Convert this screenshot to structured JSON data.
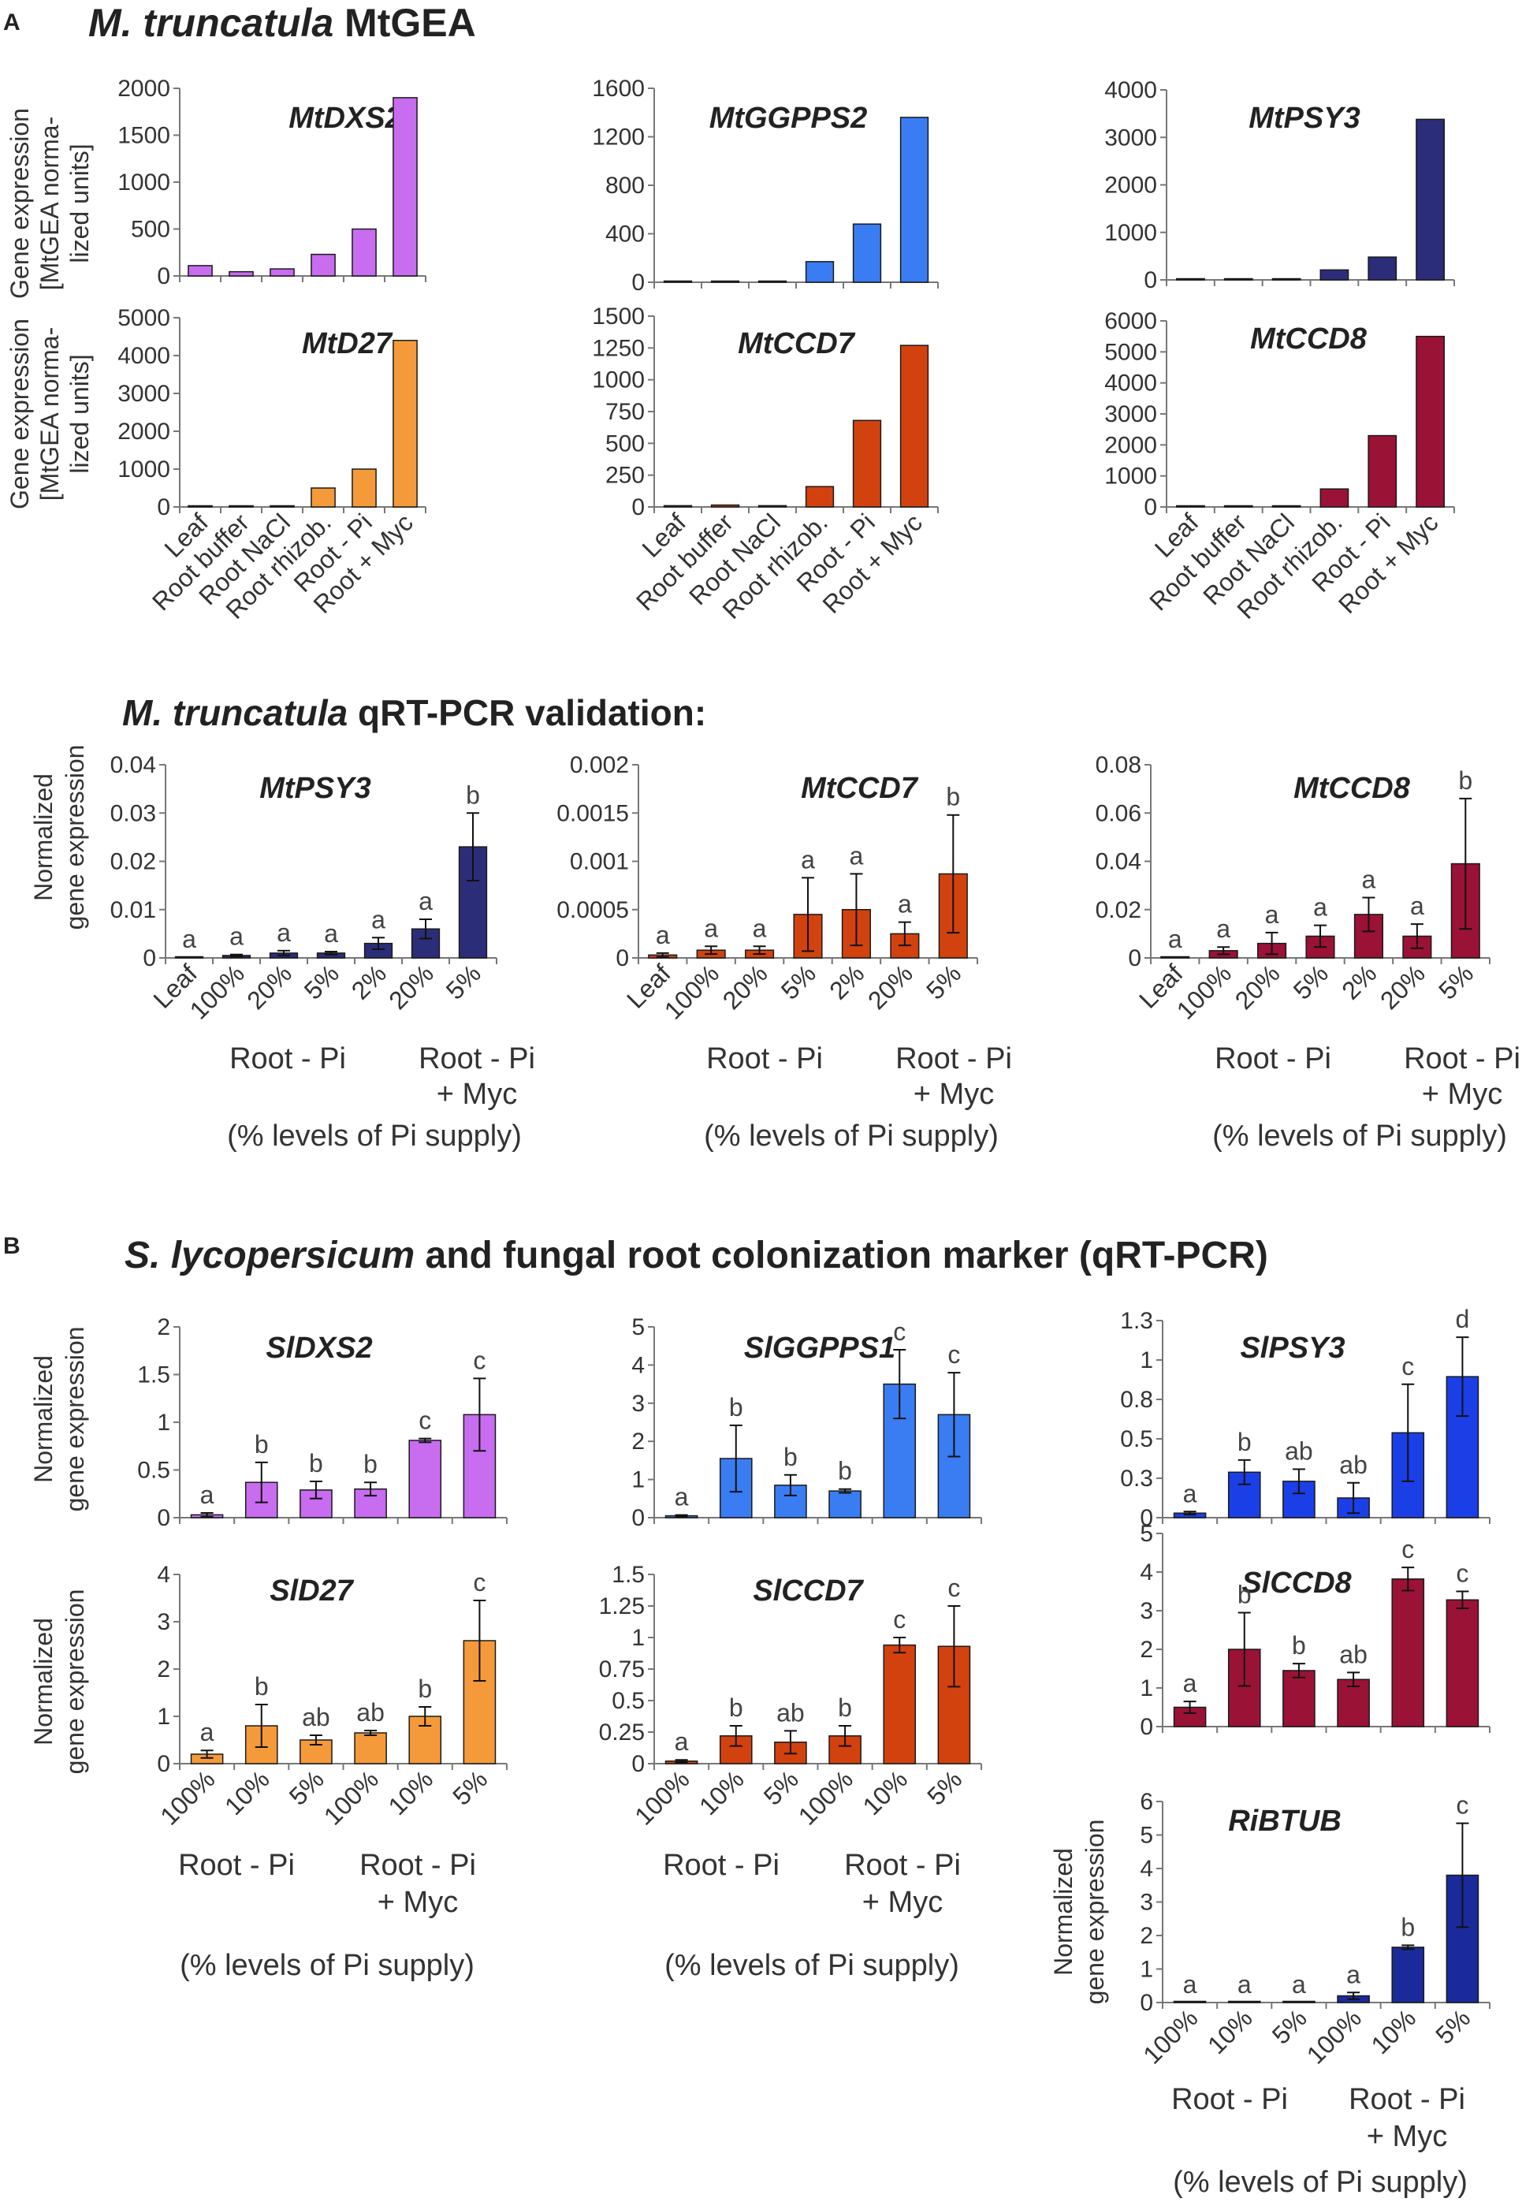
{
  "figure": {
    "panel_a_label": "A",
    "panel_a_title": "MtGEA",
    "panel_a_title_italic": "M. truncatula",
    "qpcr_title_italic": "M. truncatula",
    "qpcr_title": "qRT-PCR validation:",
    "panel_b_label": "B",
    "panel_b_title_italic": "S. lycopersicum",
    "panel_b_title": "and fungal root colonization marker (qRT-PCR)",
    "ylabel_gea": [
      "Gene expression",
      "[MtGEA norma-",
      "lized units]"
    ],
    "ylabel_norm": [
      "Normalized",
      "gene expression"
    ],
    "group_root_pi": "Root  - Pi",
    "group_root_pi_myc_1": "Root  - Pi",
    "group_root_pi_myc_2": "+ Myc",
    "pi_supply_note": "(% levels of Pi supply)"
  },
  "colors": {
    "violet": "#c86cf0",
    "blue": "#3a7cf2",
    "navy": "#2c2d78",
    "orange": "#f59a3a",
    "redorange": "#d2420e",
    "crimson": "#9a1236",
    "brightblue": "#1b3fe6",
    "darkblue": "#1a2a9a"
  },
  "chart_data": [
    {
      "id": "MtDXS2",
      "type": "bar",
      "title": "MtDXS2",
      "color": "violet",
      "ylim": [
        0,
        2000
      ],
      "yticks": [
        "0",
        "500",
        "1000",
        "1500",
        "2000"
      ],
      "categories": [
        "Leaf",
        "Root buffer",
        "Root NaCl",
        "Root rhizob.",
        "Root - Pi",
        "Root + Myc"
      ],
      "values": [
        110,
        45,
        75,
        230,
        500,
        1900
      ]
    },
    {
      "id": "MtGGPPS2",
      "type": "bar",
      "title": "MtGGPPS2",
      "color": "blue",
      "ylim": [
        0,
        1600
      ],
      "yticks": [
        "0",
        "400",
        "800",
        "1200",
        "1600"
      ],
      "categories": [
        "Leaf",
        "Root buffer",
        "Root NaCl",
        "Root rhizob.",
        "Root - Pi",
        "Root + Myc"
      ],
      "values": [
        10,
        5,
        5,
        170,
        480,
        1360
      ]
    },
    {
      "id": "MtPSY3",
      "type": "bar",
      "title": "MtPSY3",
      "color": "navy",
      "ylim": [
        0,
        4000
      ],
      "yticks": [
        "0",
        "1000",
        "2000",
        "3000",
        "4000"
      ],
      "categories": [
        "Leaf",
        "Root buffer",
        "Root NaCl",
        "Root rhizob.",
        "Root - Pi",
        "Root + Myc"
      ],
      "values": [
        20,
        15,
        10,
        210,
        480,
        3380
      ]
    },
    {
      "id": "MtD27",
      "type": "bar",
      "title": "MtD27",
      "color": "orange",
      "ylim": [
        0,
        5000
      ],
      "yticks": [
        "0",
        "1000",
        "2000",
        "3000",
        "4000",
        "5000"
      ],
      "categories": [
        "Leaf",
        "Root buffer",
        "Root NaCl",
        "Root rhizob.",
        "Root - Pi",
        "Root + Myc"
      ],
      "values": [
        20,
        30,
        30,
        500,
        1000,
        4400
      ]
    },
    {
      "id": "MtCCD7",
      "type": "bar",
      "title": "MtCCD7",
      "color": "redorange",
      "ylim": [
        0,
        1500
      ],
      "yticks": [
        "0",
        "250",
        "500",
        "750",
        "1000",
        "1250",
        "1500"
      ],
      "categories": [
        "Leaf",
        "Root buffer",
        "Root NaCl",
        "Root rhizob.",
        "Root - Pi",
        "Root + Myc"
      ],
      "values": [
        10,
        15,
        10,
        160,
        680,
        1270
      ]
    },
    {
      "id": "MtCCD8",
      "type": "bar",
      "title": "MtCCD8",
      "color": "crimson",
      "ylim": [
        0,
        6000
      ],
      "yticks": [
        "0",
        "1000",
        "2000",
        "3000",
        "4000",
        "5000",
        "6000"
      ],
      "categories": [
        "Leaf",
        "Root buffer",
        "Root NaCl",
        "Root rhizob.",
        "Root - Pi",
        "Root + Myc"
      ],
      "values": [
        20,
        20,
        20,
        580,
        2300,
        5500
      ]
    },
    {
      "id": "qMtPSY3",
      "type": "bar",
      "title": "MtPSY3",
      "color": "navy",
      "ylim": [
        0,
        0.04
      ],
      "yticks": [
        "0",
        "0.01",
        "0.02",
        "0.03",
        "0.04"
      ],
      "categories": [
        "Leaf",
        "100%",
        "20%",
        "5%",
        "2%",
        "20%",
        "5%"
      ],
      "values": [
        0.0002,
        0.0005,
        0.001,
        0.001,
        0.003,
        0.006,
        0.023
      ],
      "errors": [
        0,
        0.0002,
        0.0005,
        0.0003,
        0.0012,
        0.002,
        0.007
      ],
      "letters": [
        "a",
        "a",
        "a",
        "a",
        "a",
        "a",
        "b"
      ]
    },
    {
      "id": "qMtCCD7",
      "type": "bar",
      "title": "MtCCD7",
      "color": "redorange",
      "ylim": [
        0,
        0.002
      ],
      "yticks": [
        "0",
        "0.0005",
        "0.001",
        "0.0015",
        "0.002"
      ],
      "categories": [
        "Leaf",
        "100%",
        "20%",
        "5%",
        "2%",
        "20%",
        "5%"
      ],
      "values": [
        3e-05,
        8e-05,
        8e-05,
        0.00045,
        0.0005,
        0.00025,
        0.00087
      ],
      "errors": [
        2e-05,
        4e-05,
        4e-05,
        0.00038,
        0.00037,
        0.00012,
        0.00061
      ],
      "letters": [
        "a",
        "a",
        "a",
        "a",
        "a",
        "a",
        "b"
      ]
    },
    {
      "id": "qMtCCD8",
      "type": "bar",
      "title": "MtCCD8",
      "color": "crimson",
      "ylim": [
        0,
        0.08
      ],
      "yticks": [
        "0",
        "0.02",
        "0.04",
        "0.06",
        "0.08"
      ],
      "categories": [
        "Leaf",
        "100%",
        "20%",
        "5%",
        "2%",
        "20%",
        "5%"
      ],
      "values": [
        0.0003,
        0.003,
        0.006,
        0.009,
        0.018,
        0.009,
        0.039
      ],
      "errors": [
        0,
        0.0015,
        0.0045,
        0.0045,
        0.007,
        0.005,
        0.027
      ],
      "letters": [
        "a",
        "a",
        "a",
        "a",
        "a",
        "a",
        "b"
      ]
    },
    {
      "id": "SlDXS2",
      "type": "bar",
      "title": "SlDXS2",
      "color": "violet",
      "ylim": [
        0,
        2
      ],
      "yticks": [
        "0",
        "0.5",
        "1",
        "1.5",
        "2"
      ],
      "categories": [
        "100%",
        "10%",
        "5%",
        "100%",
        "10%",
        "5%"
      ],
      "values": [
        0.03,
        0.37,
        0.29,
        0.3,
        0.81,
        1.08
      ],
      "errors": [
        0.02,
        0.21,
        0.09,
        0.07,
        0.02,
        0.38
      ],
      "letters": [
        "a",
        "b",
        "b",
        "b",
        "c",
        "c"
      ]
    },
    {
      "id": "SlGGPPS1",
      "type": "bar",
      "title": "SlGGPPS1",
      "color": "blue",
      "ylim": [
        0,
        5
      ],
      "yticks": [
        "0",
        "1",
        "2",
        "3",
        "4",
        "5"
      ],
      "categories": [
        "100%",
        "10%",
        "5%",
        "100%",
        "10%",
        "5%"
      ],
      "values": [
        0.05,
        1.55,
        0.85,
        0.7,
        3.5,
        2.7
      ],
      "errors": [
        0.02,
        0.87,
        0.27,
        0.05,
        0.9,
        1.1
      ],
      "letters": [
        "a",
        "b",
        "b",
        "b",
        "c",
        "c"
      ]
    },
    {
      "id": "SlPSY3",
      "type": "bar",
      "title": "SlPSY3",
      "color": "brightblue",
      "ylim": [
        0,
        1.3
      ],
      "yticks": [
        "0",
        "0.3",
        "0.5",
        "0.8",
        "1",
        "1.3"
      ],
      "tickvals": [
        0,
        0.26,
        0.52,
        0.78,
        1.04,
        1.3
      ],
      "categories": [
        "100%",
        "10%",
        "5%",
        "100%",
        "10%",
        "5%"
      ],
      "values": [
        0.03,
        0.3,
        0.24,
        0.13,
        0.56,
        0.93
      ],
      "errors": [
        0.01,
        0.08,
        0.08,
        0.1,
        0.32,
        0.26
      ],
      "letters": [
        "a",
        "b",
        "ab",
        "ab",
        "c",
        "d"
      ]
    },
    {
      "id": "SlD27",
      "type": "bar",
      "title": "SlD27",
      "color": "orange",
      "ylim": [
        0,
        4
      ],
      "yticks": [
        "0",
        "1",
        "2",
        "3",
        "4"
      ],
      "categories": [
        "100%",
        "10%",
        "5%",
        "100%",
        "10%",
        "5%"
      ],
      "values": [
        0.2,
        0.8,
        0.5,
        0.65,
        1.0,
        2.6
      ],
      "errors": [
        0.08,
        0.45,
        0.1,
        0.05,
        0.2,
        0.85
      ],
      "letters": [
        "a",
        "b",
        "ab",
        "ab",
        "b",
        "c"
      ]
    },
    {
      "id": "SlCCD7",
      "type": "bar",
      "title": "SlCCD7",
      "color": "redorange",
      "ylim": [
        0,
        1.5
      ],
      "yticks": [
        "0",
        "0.25",
        "0.5",
        "0.75",
        "1",
        "1.25",
        "1.5"
      ],
      "categories": [
        "100%",
        "10%",
        "5%",
        "100%",
        "10%",
        "5%"
      ],
      "values": [
        0.02,
        0.22,
        0.17,
        0.22,
        0.94,
        0.93
      ],
      "errors": [
        0.01,
        0.08,
        0.09,
        0.08,
        0.06,
        0.32
      ],
      "letters": [
        "a",
        "b",
        "ab",
        "b",
        "c",
        "c"
      ]
    },
    {
      "id": "SlCCD8",
      "type": "bar",
      "title": "SlCCD8",
      "color": "crimson",
      "ylim": [
        0,
        5
      ],
      "yticks": [
        "0",
        "1",
        "2",
        "3",
        "4",
        "5"
      ],
      "categories": [
        "100%",
        "10%",
        "5%",
        "100%",
        "10%",
        "5%"
      ],
      "values": [
        0.5,
        2.0,
        1.45,
        1.22,
        3.82,
        3.28
      ],
      "errors": [
        0.15,
        0.95,
        0.18,
        0.18,
        0.3,
        0.22
      ],
      "letters": [
        "a",
        "b",
        "b",
        "ab",
        "c",
        "c"
      ]
    },
    {
      "id": "RiBTUB",
      "type": "bar",
      "title": "RiBTUB",
      "color": "darkblue",
      "ylim": [
        0,
        6
      ],
      "yticks": [
        "0",
        "1",
        "2",
        "3",
        "4",
        "5",
        "6"
      ],
      "categories": [
        "100%",
        "10%",
        "5%",
        "100%",
        "10%",
        "5%"
      ],
      "values": [
        0,
        0,
        0,
        0.2,
        1.65,
        3.8
      ],
      "errors": [
        0,
        0,
        0,
        0.1,
        0.06,
        1.55
      ],
      "letters": [
        "a",
        "a",
        "a",
        "a",
        "b",
        "c"
      ]
    }
  ]
}
